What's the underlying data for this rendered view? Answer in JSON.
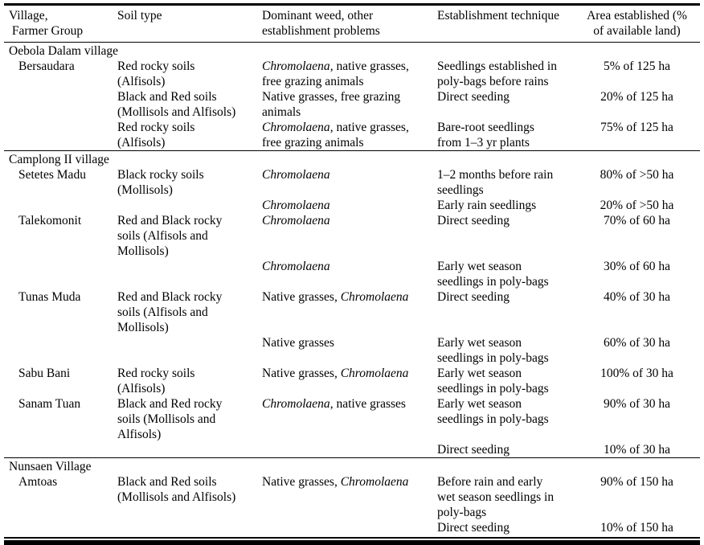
{
  "table": {
    "headers": [
      {
        "id": "village",
        "label": "Village,\n Farmer Group"
      },
      {
        "id": "soil",
        "label": "Soil type"
      },
      {
        "id": "weed",
        "label": "Dominant weed, other\nestablishment problems"
      },
      {
        "id": "technique",
        "label": "Establishment technique"
      },
      {
        "id": "area",
        "label": "Area established (%\nof available land)"
      }
    ],
    "sections": [
      {
        "title": "Oebola Dalam village",
        "rows": [
          {
            "group": "Bersaudara",
            "soil": "Red rocky soils\n(Alfisols)",
            "weed": "*Chromolaena*, native grasses,\nfree grazing animals",
            "technique": "Seedlings established in\npoly-bags before rains",
            "area": "5% of 125 ha"
          },
          {
            "group": "",
            "soil": "Black and Red soils\n(Mollisols and Alfisols)",
            "weed": "Native grasses, free grazing\nanimals",
            "technique": "Direct seeding",
            "area": "20% of 125 ha"
          },
          {
            "group": "",
            "soil": "Red rocky soils\n(Alfisols)",
            "weed": "*Chromolaena*, native grasses,\nfree grazing animals",
            "technique": "Bare-root seedlings\nfrom 1–3 yr plants",
            "area": "75% of 125 ha"
          }
        ]
      },
      {
        "title": "Camplong II village",
        "rows": [
          {
            "group": "Setetes Madu",
            "soil": "Black rocky soils\n(Mollisols)",
            "weed": "*Chromolaena*",
            "technique": "1–2 months before rain\nseedlings",
            "area": "80% of >50 ha"
          },
          {
            "group": "",
            "soil": "",
            "weed": "*Chromolaena*",
            "technique": "Early rain seedlings",
            "area": "20% of >50 ha"
          },
          {
            "group": "Talekomonit",
            "soil": "Red and Black rocky\nsoils (Alfisols and\nMollisols)",
            "weed": "*Chromolaena*",
            "technique": "Direct seeding",
            "area": "70% of 60 ha"
          },
          {
            "group": "",
            "soil": "",
            "weed": "*Chromolaena*",
            "technique": "Early wet season\nseedlings in poly-bags",
            "area": "30% of 60 ha"
          },
          {
            "group": "Tunas Muda",
            "soil": "Red and Black rocky\nsoils (Alfisols and\nMollisols)",
            "weed": "Native grasses, *Chromolaena*",
            "technique": "Direct seeding",
            "area": "40% of 30 ha"
          },
          {
            "group": "",
            "soil": "",
            "weed": "Native grasses",
            "technique": "Early wet season\nseedlings in poly-bags",
            "area": "60% of 30 ha"
          },
          {
            "group": "Sabu Bani",
            "soil": "Red rocky soils\n(Alfisols)",
            "weed": "Native grasses, *Chromolaena*",
            "technique": "Early wet season\nseedlings in poly-bags",
            "area": "100% of 30 ha"
          },
          {
            "group": "Sanam Tuan",
            "soil": "Black and Red rocky\nsoils (Mollisols and\nAlfisols)",
            "weed": "*Chromolaena*, native grasses",
            "technique": "Early wet season\nseedlings in poly-bags",
            "area": "90% of 30 ha"
          },
          {
            "group": "",
            "soil": "",
            "weed": "",
            "technique": "Direct seeding",
            "area": "10% of 30 ha"
          }
        ]
      },
      {
        "title": "Nunsaen Village",
        "rows": [
          {
            "group": "Amtoas",
            "soil": "Black and Red soils\n(Mollisols and Alfisols)",
            "weed": "Native grasses, *Chromolaena*",
            "technique": "Before rain and early\nwet season seedlings in\npoly-bags",
            "area": "90% of 150 ha"
          },
          {
            "group": "",
            "soil": "",
            "weed": "",
            "technique": "Direct seeding",
            "area": "10% of 150 ha"
          }
        ]
      }
    ]
  }
}
